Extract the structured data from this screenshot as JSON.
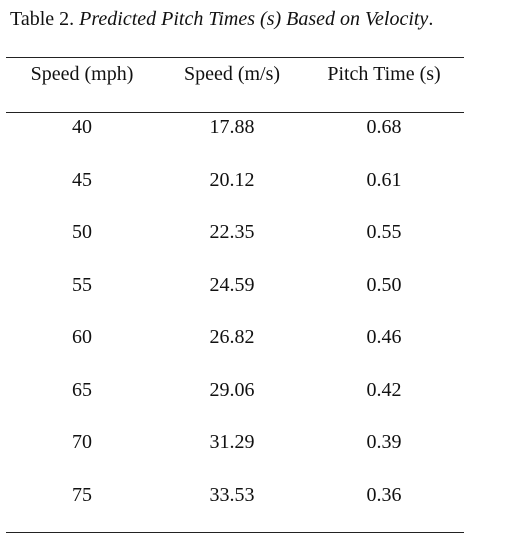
{
  "caption": {
    "prefix": "Table 2. ",
    "title": "Predicted Pitch Times (s) Based on Velocity",
    "suffix": "."
  },
  "table": {
    "headers": [
      "Speed (mph)",
      "Speed (m/s)",
      "Pitch Time (s)"
    ],
    "rows": [
      [
        "40",
        "17.88",
        "0.68"
      ],
      [
        "45",
        "20.12",
        "0.61"
      ],
      [
        "50",
        "22.35",
        "0.55"
      ],
      [
        "55",
        "24.59",
        "0.50"
      ],
      [
        "60",
        "26.82",
        "0.46"
      ],
      [
        "65",
        "29.06",
        "0.42"
      ],
      [
        "70",
        "31.29",
        "0.39"
      ],
      [
        "75",
        "33.53",
        "0.36"
      ]
    ]
  }
}
